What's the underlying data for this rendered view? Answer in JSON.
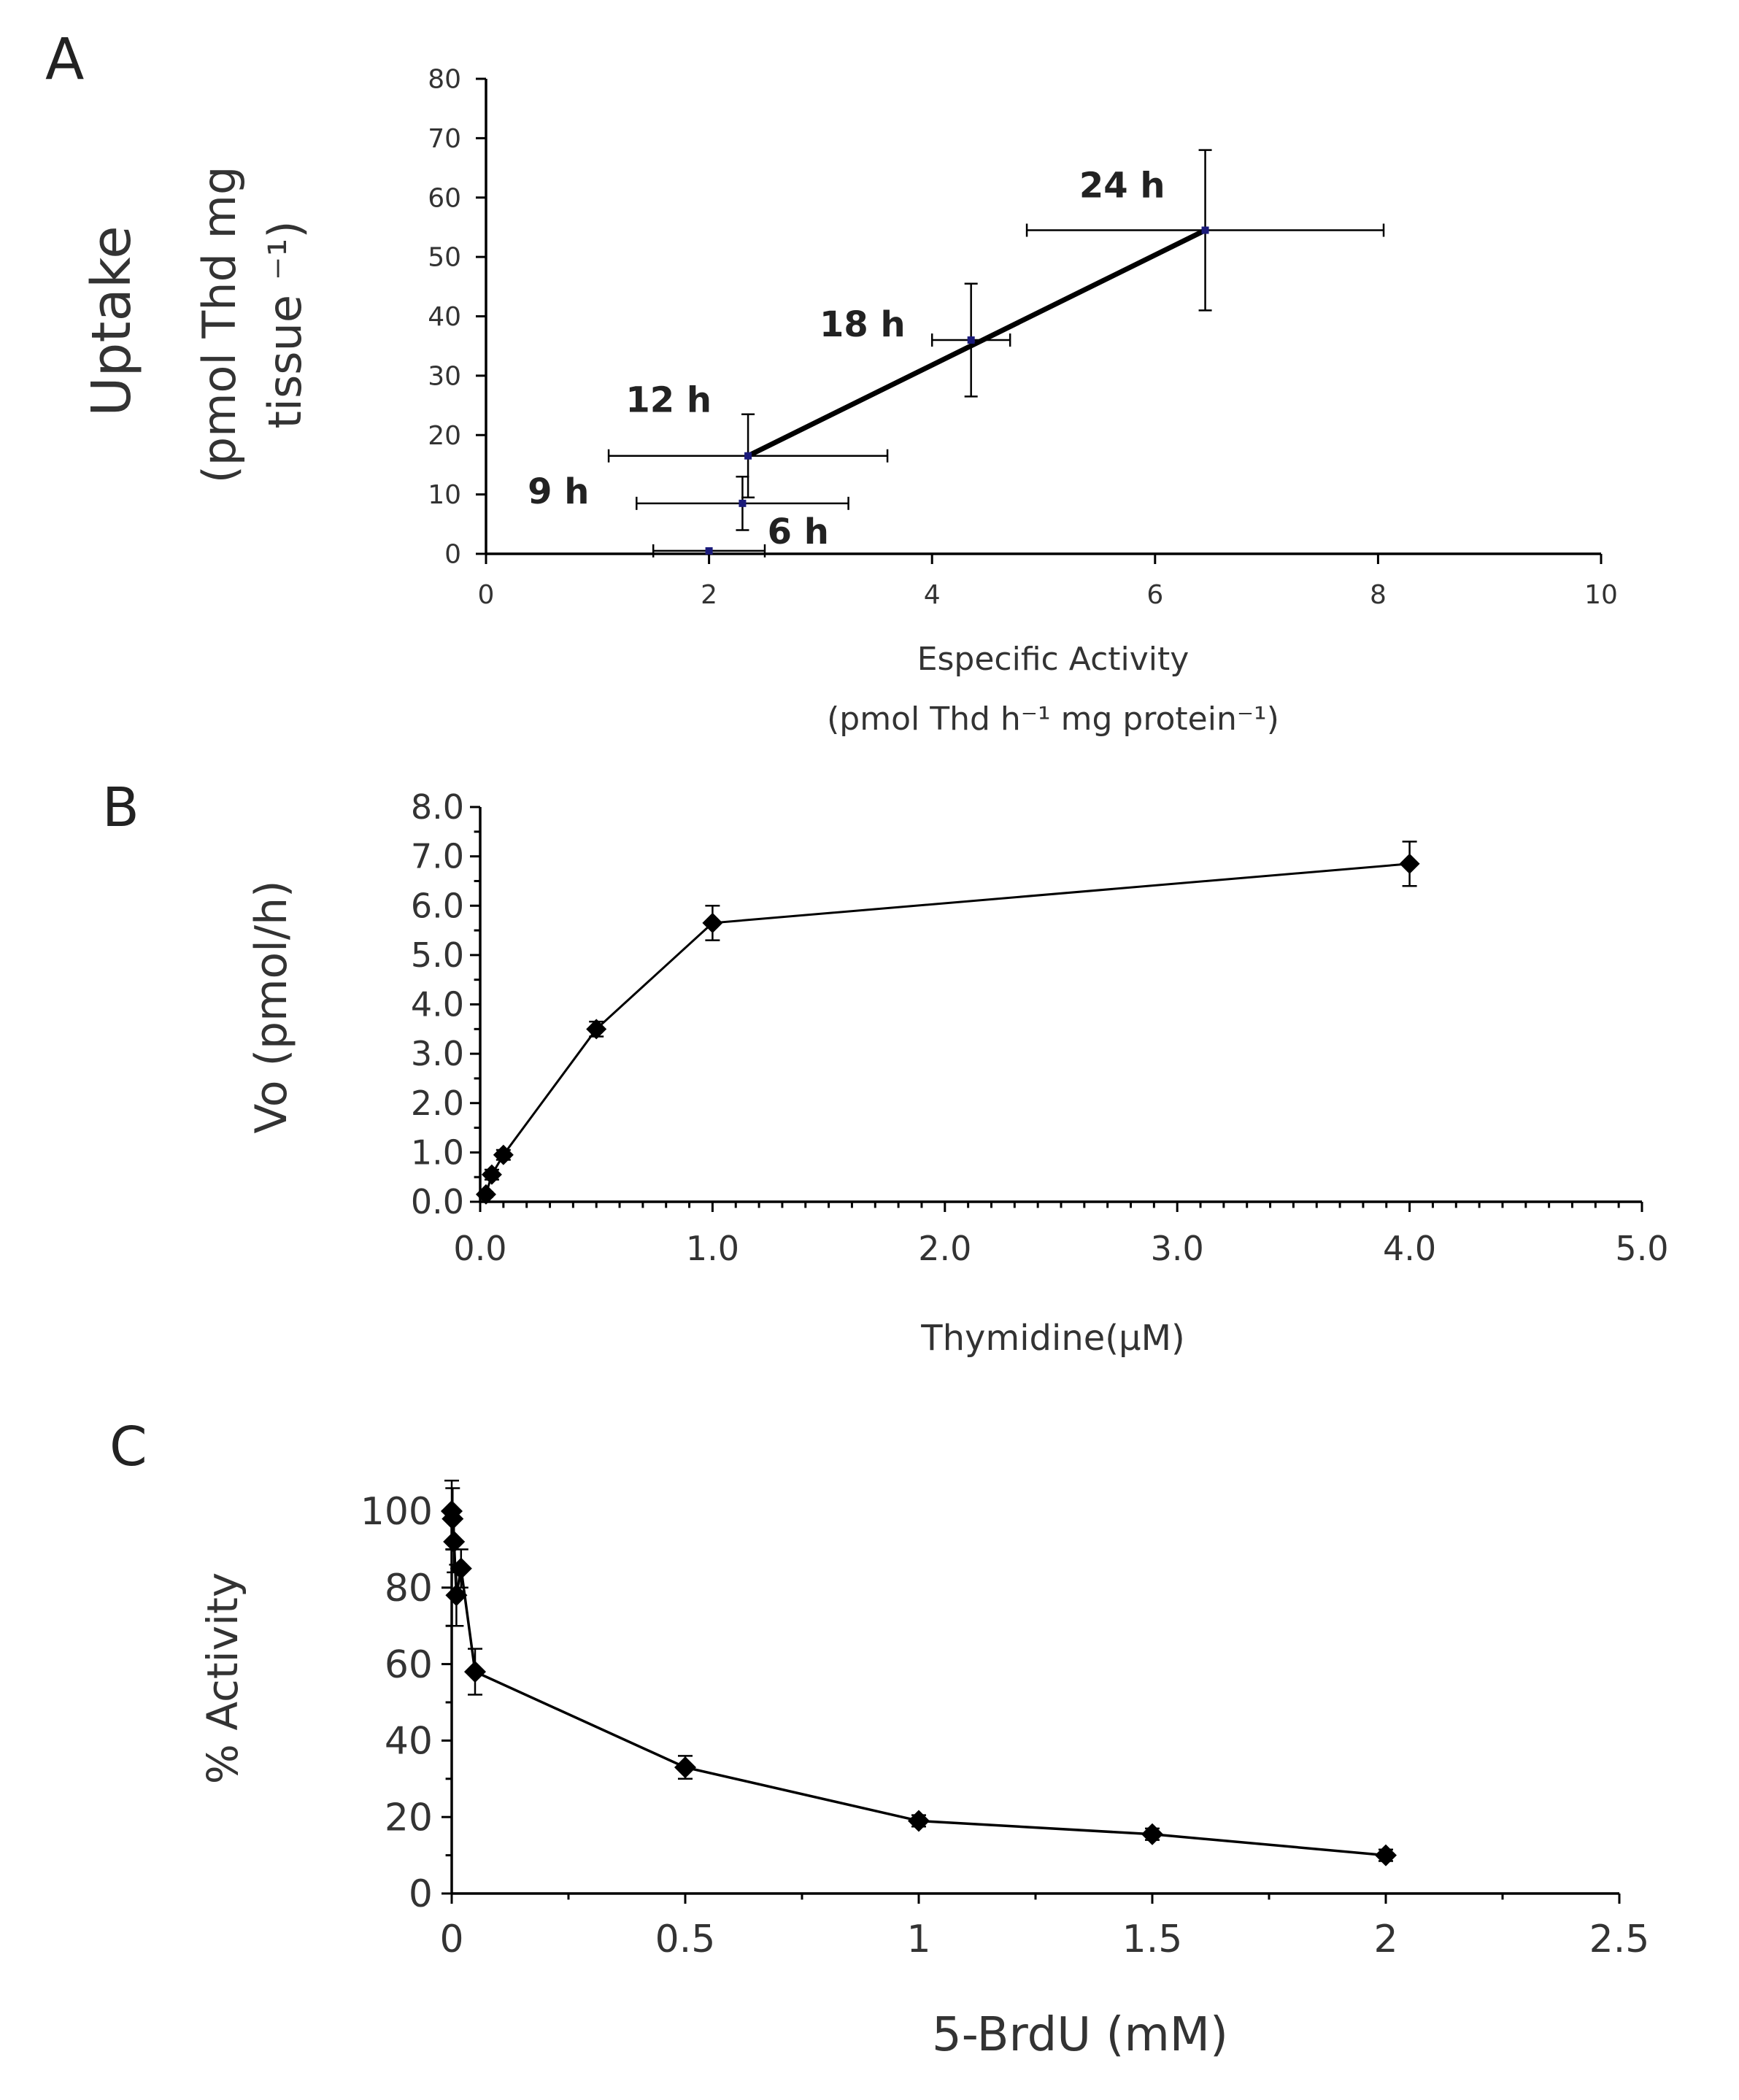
{
  "chart_data": [
    {
      "panel_label": "A",
      "type": "scatter",
      "xlabel": "Especific Activity",
      "xlabel_units": "(pmol Thd h⁻¹ mg protein⁻¹)",
      "ylabel": "Uptake",
      "ylabel_units_line1": "(pmol Thd mg",
      "ylabel_units_line2": "tissue ⁻¹)",
      "xlim": [
        0,
        10
      ],
      "ylim": [
        0,
        80
      ],
      "x_ticks": [
        0,
        2,
        4,
        6,
        8,
        10
      ],
      "y_ticks": [
        0,
        10,
        20,
        30,
        40,
        50,
        60,
        70,
        80
      ],
      "points": [
        {
          "label": "6 h",
          "x": 2.0,
          "y": 0.5,
          "x_err": 0.5,
          "y_err": 0
        },
        {
          "label": "9 h",
          "x": 2.3,
          "y": 8.5,
          "x_err": 0.95,
          "y_err": 4.5
        },
        {
          "label": "12 h",
          "x": 2.35,
          "y": 16.5,
          "x_err": 1.25,
          "y_err": 7
        },
        {
          "label": "18 h",
          "x": 4.35,
          "y": 36,
          "x_err": 0.35,
          "y_err": 9.5
        },
        {
          "label": "24 h",
          "x": 6.45,
          "y": 54.5,
          "x_err": 1.6,
          "y_err": 13.5
        }
      ],
      "trendline": {
        "from": [
          2.35,
          16.5
        ],
        "to": [
          6.45,
          54.5
        ]
      }
    },
    {
      "panel_label": "B",
      "type": "line",
      "xlabel": "Thymidine(μM)",
      "ylabel": "Vo (pmol/h)",
      "xlim": [
        0,
        5
      ],
      "ylim": [
        0,
        8
      ],
      "x_ticks": [
        "0.0",
        "1.0",
        "2.0",
        "3.0",
        "4.0",
        "5.0"
      ],
      "y_ticks": [
        "0.0",
        "1.0",
        "2.0",
        "3.0",
        "4.0",
        "5.0",
        "6.0",
        "7.0",
        "8.0"
      ],
      "x": [
        0.025,
        0.05,
        0.1,
        0.5,
        1.0,
        4.0
      ],
      "y": [
        0.15,
        0.55,
        0.95,
        3.5,
        5.65,
        6.85
      ],
      "y_err": [
        0.05,
        0.1,
        0.1,
        0.15,
        0.35,
        0.45
      ]
    },
    {
      "panel_label": "C",
      "type": "line",
      "xlabel": "5-BrdU (mM)",
      "ylabel": "% Activity",
      "xlim": [
        0,
        2.5
      ],
      "ylim": [
        0,
        100
      ],
      "x_ticks": [
        "0",
        "0.5",
        "1",
        "1.5",
        "2",
        "2.5"
      ],
      "y_ticks": [
        "0",
        "20",
        "40",
        "60",
        "80",
        "100"
      ],
      "x": [
        0,
        0.002,
        0.005,
        0.01,
        0.02,
        0.05,
        0.5,
        1.0,
        1.5,
        2.0
      ],
      "y": [
        100,
        98,
        92,
        78,
        85,
        58,
        33,
        19,
        15.5,
        10
      ],
      "y_err": [
        8,
        8,
        8,
        8,
        5,
        6,
        3,
        1.5,
        1.5,
        1.5
      ]
    }
  ]
}
